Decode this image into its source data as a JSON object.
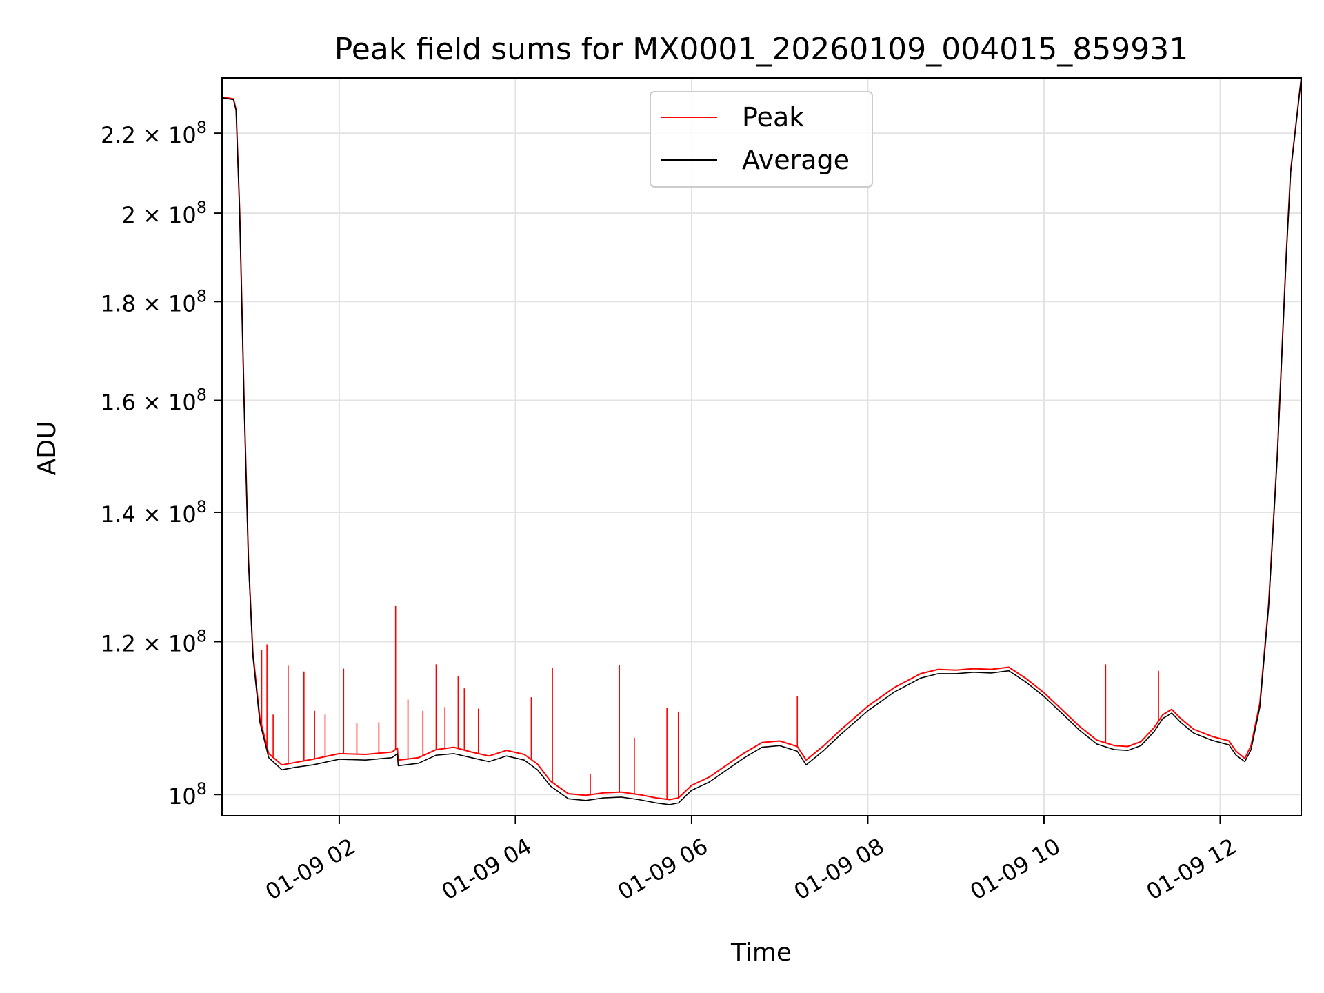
{
  "chart_data": {
    "type": "line",
    "title": "Peak field sums for MX0001_20260109_004015_859931",
    "xlabel": "Time",
    "ylabel": "ADU",
    "y_scale": "log",
    "x_unit": "hours since 2026-01-09 00:00",
    "xlim": [
      0.67,
      12.92
    ],
    "ylim": [
      97500000,
      235000000
    ],
    "x_ticks": [
      {
        "value": 2,
        "label": "01-09 02"
      },
      {
        "value": 4,
        "label": "01-09 04"
      },
      {
        "value": 6,
        "label": "01-09 06"
      },
      {
        "value": 8,
        "label": "01-09 08"
      },
      {
        "value": 10,
        "label": "01-09 10"
      },
      {
        "value": 12,
        "label": "01-09 12"
      }
    ],
    "y_ticks": [
      {
        "value": 100000000,
        "mantissa": "",
        "exp": "8"
      },
      {
        "value": 120000000,
        "mantissa": "1.2",
        "exp": "8"
      },
      {
        "value": 140000000,
        "mantissa": "1.4",
        "exp": "8"
      },
      {
        "value": 160000000,
        "mantissa": "1.6",
        "exp": "8"
      },
      {
        "value": 180000000,
        "mantissa": "1.8",
        "exp": "8"
      },
      {
        "value": 200000000,
        "mantissa": "2",
        "exp": "8"
      },
      {
        "value": 220000000,
        "mantissa": "2.2",
        "exp": "8"
      }
    ],
    "tick_base": "10",
    "times_sign": "×",
    "legend": {
      "position": "top-center",
      "entries": [
        {
          "label": "Peak",
          "color": "#ff0000"
        },
        {
          "label": "Average",
          "color": "#000000"
        }
      ]
    },
    "grid": true,
    "series": [
      {
        "name": "Average",
        "color": "#000000",
        "x": [
          0.67,
          0.8,
          0.83,
          0.87,
          0.92,
          0.97,
          1.02,
          1.1,
          1.2,
          1.35,
          1.5,
          1.7,
          2.0,
          2.3,
          2.6,
          2.66,
          2.67,
          2.9,
          3.1,
          3.3,
          3.5,
          3.7,
          3.9,
          4.1,
          4.25,
          4.4,
          4.6,
          4.8,
          5.0,
          5.2,
          5.4,
          5.6,
          5.75,
          5.85,
          6.0,
          6.2,
          6.4,
          6.6,
          6.8,
          7.0,
          7.2,
          7.3,
          7.5,
          7.7,
          8.0,
          8.3,
          8.6,
          8.8,
          9.0,
          9.2,
          9.4,
          9.6,
          9.8,
          10.0,
          10.2,
          10.4,
          10.6,
          10.8,
          10.95,
          11.1,
          11.25,
          11.35,
          11.45,
          11.55,
          11.7,
          11.9,
          12.0,
          12.1,
          12.18,
          12.28,
          12.35,
          12.45,
          12.55,
          12.65,
          12.75,
          12.8,
          12.92
        ],
        "values": [
          229500000,
          229000000,
          226000000,
          200000000,
          160000000,
          132000000,
          118000000,
          109000000,
          104500000,
          103000000,
          103300000,
          103600000,
          104300000,
          104200000,
          104500000,
          105000000,
          103500000,
          103800000,
          104800000,
          105000000,
          104500000,
          104000000,
          104700000,
          104200000,
          103000000,
          101000000,
          99500000,
          99300000,
          99600000,
          99700000,
          99400000,
          99000000,
          98800000,
          99000000,
          100500000,
          101500000,
          103000000,
          104500000,
          105800000,
          106000000,
          105300000,
          103600000,
          105400000,
          107500000,
          110500000,
          113000000,
          114900000,
          115500000,
          115500000,
          115700000,
          115600000,
          115900000,
          114300000,
          112400000,
          110200000,
          108000000,
          106200000,
          105500000,
          105400000,
          106000000,
          107800000,
          109500000,
          110200000,
          109000000,
          107600000,
          106700000,
          106400000,
          106100000,
          104800000,
          104000000,
          105500000,
          111000000,
          125000000,
          150000000,
          190000000,
          210000000,
          235000000
        ]
      },
      {
        "name": "Peak",
        "color": "#ff0000",
        "x": [
          0.67,
          0.8,
          0.83,
          0.87,
          0.92,
          0.97,
          1.02,
          1.1,
          1.2,
          1.35,
          1.5,
          1.7,
          2.0,
          2.3,
          2.6,
          2.66,
          2.67,
          2.9,
          3.1,
          3.3,
          3.5,
          3.7,
          3.9,
          4.1,
          4.25,
          4.4,
          4.6,
          4.8,
          5.0,
          5.2,
          5.4,
          5.6,
          5.75,
          5.85,
          6.0,
          6.2,
          6.4,
          6.6,
          6.8,
          7.0,
          7.2,
          7.3,
          7.5,
          7.7,
          8.0,
          8.3,
          8.6,
          8.8,
          9.0,
          9.2,
          9.4,
          9.6,
          9.8,
          10.0,
          10.2,
          10.4,
          10.6,
          10.8,
          10.95,
          11.1,
          11.25,
          11.35,
          11.45,
          11.55,
          11.7,
          11.9,
          12.0,
          12.1,
          12.18,
          12.28,
          12.35,
          12.45,
          12.55,
          12.65,
          12.75,
          12.8,
          12.92
        ],
        "values": [
          229700000,
          229200000,
          226300000,
          200400000,
          160500000,
          132500000,
          118500000,
          109500000,
          105000000,
          103600000,
          103900000,
          104300000,
          105000000,
          104900000,
          105200000,
          105700000,
          104200000,
          104500000,
          105500000,
          105800000,
          105200000,
          104700000,
          105400000,
          104900000,
          103700000,
          101600000,
          100100000,
          99900000,
          100200000,
          100300000,
          100000000,
          99600000,
          99400000,
          99600000,
          101100000,
          102100000,
          103600000,
          105100000,
          106400000,
          106600000,
          105900000,
          104200000,
          106000000,
          108100000,
          111100000,
          113600000,
          115500000,
          116100000,
          116000000,
          116200000,
          116100000,
          116400000,
          114800000,
          112900000,
          110700000,
          108500000,
          106700000,
          106000000,
          105900000,
          106500000,
          108300000,
          110000000,
          110700000,
          109500000,
          108100000,
          107200000,
          106900000,
          106600000,
          105300000,
          104400000,
          106000000,
          111500000,
          125500000,
          150500000,
          190500000,
          210500000,
          235000000
        ],
        "spikes": [
          {
            "x": 1.12,
            "value": 118800000
          },
          {
            "x": 1.18,
            "value": 119600000
          },
          {
            "x": 1.25,
            "value": 110000000
          },
          {
            "x": 1.42,
            "value": 116600000
          },
          {
            "x": 1.6,
            "value": 115800000
          },
          {
            "x": 1.72,
            "value": 110500000
          },
          {
            "x": 1.84,
            "value": 110000000
          },
          {
            "x": 2.05,
            "value": 116200000
          },
          {
            "x": 2.2,
            "value": 108900000
          },
          {
            "x": 2.45,
            "value": 109000000
          },
          {
            "x": 2.64,
            "value": 125200000
          },
          {
            "x": 2.78,
            "value": 112000000
          },
          {
            "x": 2.95,
            "value": 110500000
          },
          {
            "x": 3.1,
            "value": 116800000
          },
          {
            "x": 3.2,
            "value": 111000000
          },
          {
            "x": 3.35,
            "value": 115200000
          },
          {
            "x": 3.42,
            "value": 113500000
          },
          {
            "x": 3.58,
            "value": 110800000
          },
          {
            "x": 4.18,
            "value": 112300000
          },
          {
            "x": 4.42,
            "value": 116300000
          },
          {
            "x": 4.85,
            "value": 102500000
          },
          {
            "x": 5.18,
            "value": 116700000
          },
          {
            "x": 5.35,
            "value": 107000000
          },
          {
            "x": 5.72,
            "value": 110900000
          },
          {
            "x": 5.85,
            "value": 110400000
          },
          {
            "x": 7.2,
            "value": 112400000
          },
          {
            "x": 10.7,
            "value": 116800000
          },
          {
            "x": 11.3,
            "value": 115900000
          }
        ]
      }
    ]
  }
}
